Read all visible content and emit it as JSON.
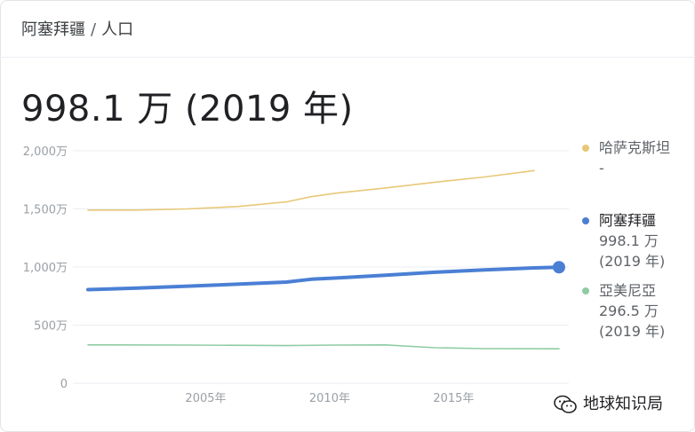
{
  "breadcrumb": {
    "country": "阿塞拜疆",
    "separator": "/",
    "topic": "人口"
  },
  "headline": "998.1 万 (2019 年)",
  "watermark": {
    "text": "地球知识局",
    "icon": "wechat-icon"
  },
  "chart_data": {
    "type": "line",
    "x_range": [
      2000,
      2019
    ],
    "x_ticks": [
      {
        "value": 2005,
        "label": "2005年"
      },
      {
        "value": 2010,
        "label": "2010年"
      },
      {
        "value": 2015,
        "label": "2015年"
      }
    ],
    "y_range": [
      0,
      2000
    ],
    "y_ticks": [
      {
        "value": 0,
        "label": "0"
      },
      {
        "value": 500,
        "label": "500万"
      },
      {
        "value": 1000,
        "label": "1,000万"
      },
      {
        "value": 1500,
        "label": "1,500万"
      },
      {
        "value": 2000,
        "label": "2,000万"
      }
    ],
    "grid": true,
    "legend_position": "right",
    "series": [
      {
        "name": "哈萨克斯坦",
        "color": "#e8c878",
        "highlighted": false,
        "legend_value": "-",
        "legend_year": "",
        "points": [
          [
            2000,
            1490
          ],
          [
            2002,
            1490
          ],
          [
            2004,
            1500
          ],
          [
            2006,
            1520
          ],
          [
            2008,
            1560
          ],
          [
            2009,
            1605
          ],
          [
            2010,
            1635
          ],
          [
            2012,
            1680
          ],
          [
            2014,
            1730
          ],
          [
            2016,
            1775
          ],
          [
            2018,
            1830
          ]
        ]
      },
      {
        "name": "阿塞拜疆",
        "color": "#4a7fd4",
        "highlighted": true,
        "legend_value": "998.1 万",
        "legend_year": "(2019 年)",
        "points": [
          [
            2000,
            805
          ],
          [
            2002,
            818
          ],
          [
            2004,
            835
          ],
          [
            2006,
            852
          ],
          [
            2008,
            870
          ],
          [
            2009,
            895
          ],
          [
            2010,
            905
          ],
          [
            2012,
            930
          ],
          [
            2014,
            955
          ],
          [
            2016,
            975
          ],
          [
            2018,
            992
          ],
          [
            2019,
            998.1
          ]
        ]
      },
      {
        "name": "亞美尼亞",
        "color": "#8fcca3",
        "highlighted": false,
        "legend_value": "296.5 万",
        "legend_year": "(2019 年)",
        "points": [
          [
            2000,
            330
          ],
          [
            2004,
            328
          ],
          [
            2008,
            324
          ],
          [
            2010,
            328
          ],
          [
            2012,
            330
          ],
          [
            2014,
            305
          ],
          [
            2016,
            298
          ],
          [
            2019,
            296.5
          ]
        ]
      }
    ]
  }
}
